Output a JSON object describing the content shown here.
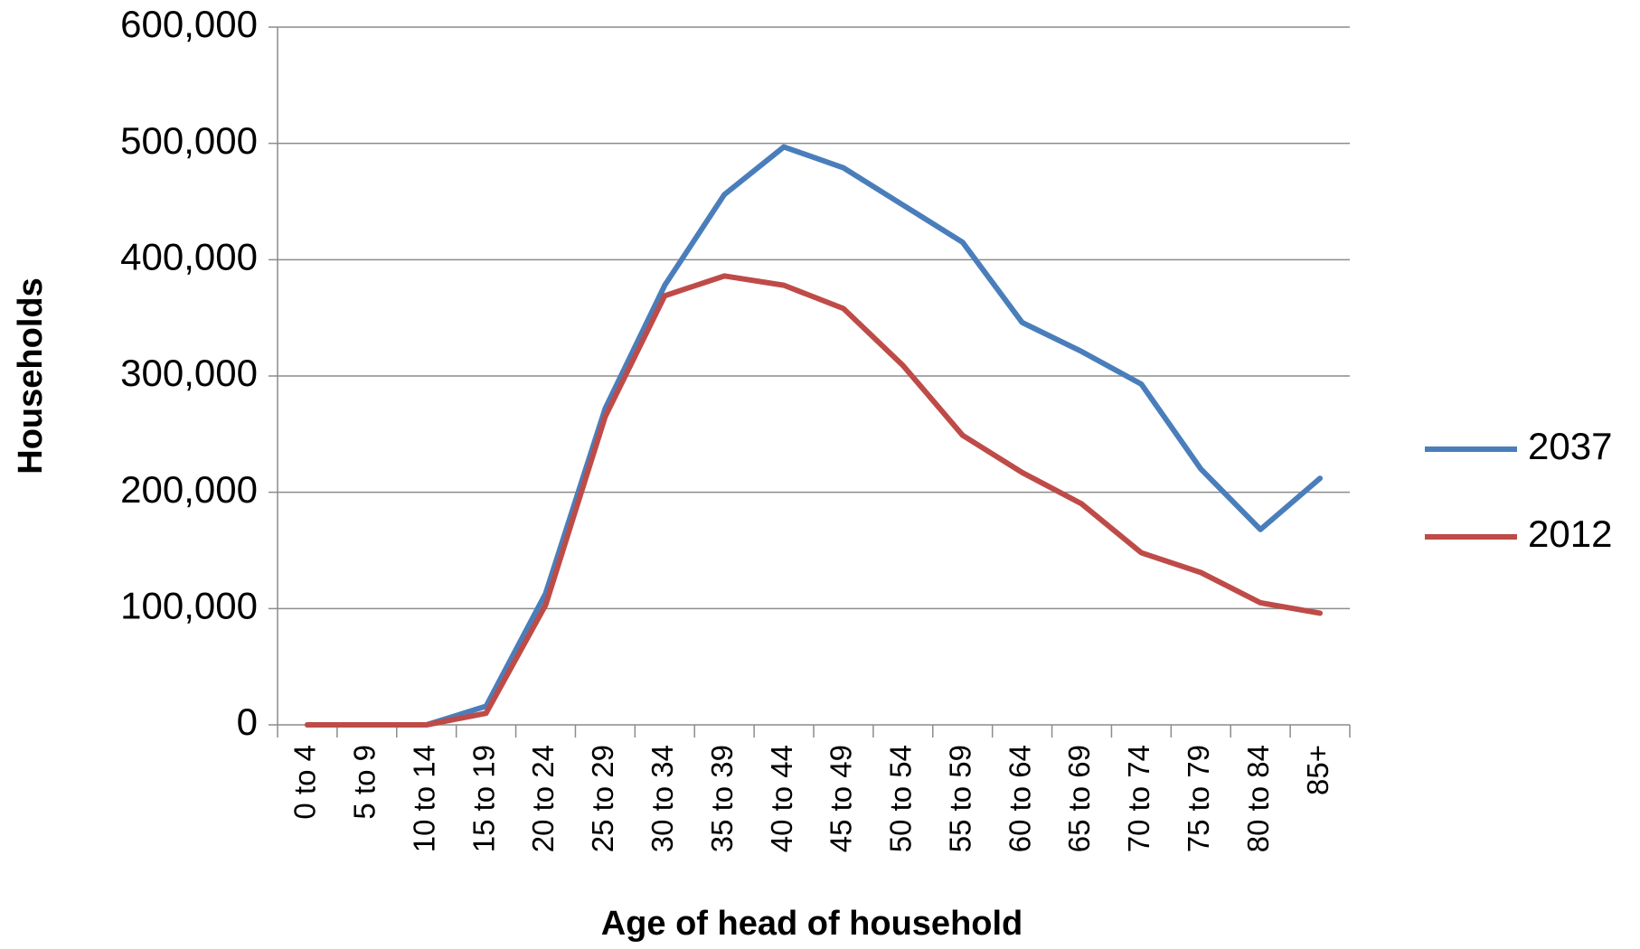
{
  "chart_data": {
    "type": "line",
    "x_label": "Age of head of household",
    "y_label": "Households",
    "categories": [
      "0 to 4",
      "5 to 9",
      "10 to 14",
      "15 to 19",
      "20 to 24",
      "25 to 29",
      "30 to 34",
      "35 to 39",
      "40 to 44",
      "45 to 49",
      "50 to 54",
      "55 to 59",
      "60 to 64",
      "65 to 69",
      "70 to 74",
      "75 to 79",
      "80 to 84",
      "85+"
    ],
    "series": [
      {
        "name": "2037",
        "color": "#4a7ebb",
        "values": [
          0,
          0,
          0,
          16000,
          113000,
          272000,
          378000,
          456000,
          497000,
          479000,
          447000,
          415000,
          346000,
          321000,
          293000,
          220000,
          168000,
          212000
        ]
      },
      {
        "name": "2012",
        "color": "#be4b48",
        "values": [
          0,
          0,
          0,
          10000,
          103000,
          265000,
          369000,
          386000,
          378000,
          358000,
          309000,
          249000,
          217000,
          190000,
          148000,
          131000,
          105000,
          96000
        ]
      }
    ],
    "ylim": [
      0,
      600000
    ],
    "yticks": [
      0,
      {
        "value": 100000,
        "label": "100,000"
      },
      {
        "value": 200000,
        "label": "200,000"
      },
      {
        "value": 300000,
        "label": "300,000"
      },
      {
        "value": 400000,
        "label": "400,000"
      },
      {
        "value": 500000,
        "label": "500,000"
      },
      {
        "value": 600000,
        "label": "600,000"
      }
    ],
    "grid": true,
    "legend": "right"
  }
}
